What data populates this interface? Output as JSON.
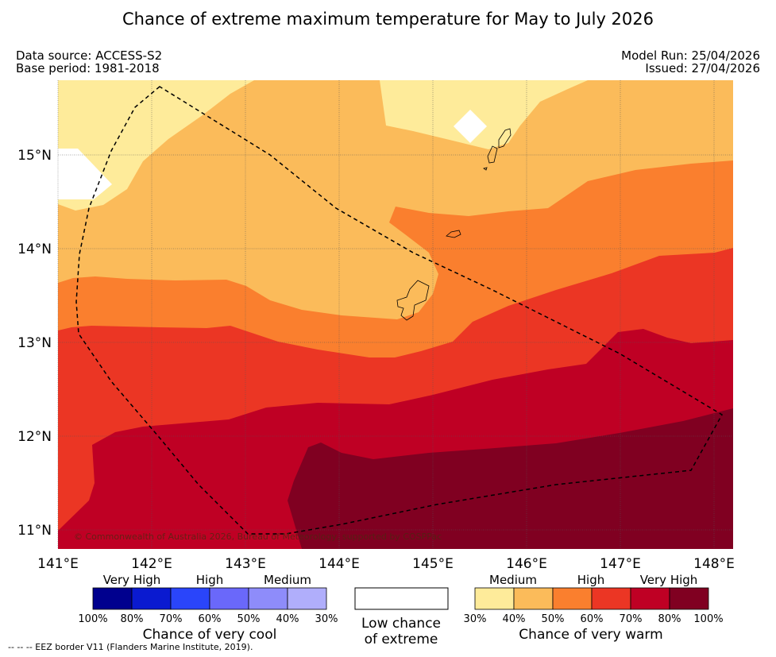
{
  "title": "Chance of extreme maximum temperature for May to July 2026",
  "meta": {
    "data_source": "Data source: ACCESS-S2",
    "base_period": "Base period: 1981-2018",
    "model_run": "Model Run: 25/04/2026",
    "issued": "Issued: 27/04/2026"
  },
  "map": {
    "lat_labels": [
      "15°N",
      "14°N",
      "13°N",
      "12°N",
      "11°N"
    ],
    "lon_labels": [
      "141°E",
      "142°E",
      "143°E",
      "144°E",
      "145°E",
      "146°E",
      "147°E",
      "148°E"
    ],
    "copyright": "© Commonwealth of Australia 2026, Bureau of Meteorology, supported by COSPPac",
    "extent": {
      "lon": [
        141.0,
        148.2
      ],
      "lat": [
        10.8,
        15.8
      ]
    },
    "category_colors": {
      "low": "#ffffff",
      "warm_30_40": "#feeb9a",
      "warm_40_50": "#fbbb5a",
      "warm_50_60": "#fa7f2e",
      "warm_60_70": "#eb3624",
      "warm_70_80": "#bf0024",
      "warm_80_100": "#800021"
    }
  },
  "legend": {
    "cool": {
      "headers": [
        "Very High",
        "High",
        "Medium"
      ],
      "ticks": [
        "100%",
        "80%",
        "70%",
        "60%",
        "50%",
        "40%",
        "30%"
      ],
      "colors": [
        "#00008e",
        "#0a1ad0",
        "#2a45fa",
        "#6a68fa",
        "#8e8cfa",
        "#b0aefb"
      ],
      "title": "Chance of very cool"
    },
    "low": {
      "line1": "Low chance",
      "line2": "of extreme"
    },
    "warm": {
      "headers": [
        "Medium",
        "High",
        "Very High"
      ],
      "ticks": [
        "30%",
        "40%",
        "50%",
        "60%",
        "70%",
        "80%",
        "100%"
      ],
      "colors": [
        "#feeb9a",
        "#fbbb5a",
        "#fa7f2e",
        "#eb3624",
        "#bf0024",
        "#800021"
      ],
      "title": "Chance of very warm"
    }
  },
  "footnote": "--  --  -- EEZ border V11 (Flanders Marine Institute, 2019)."
}
